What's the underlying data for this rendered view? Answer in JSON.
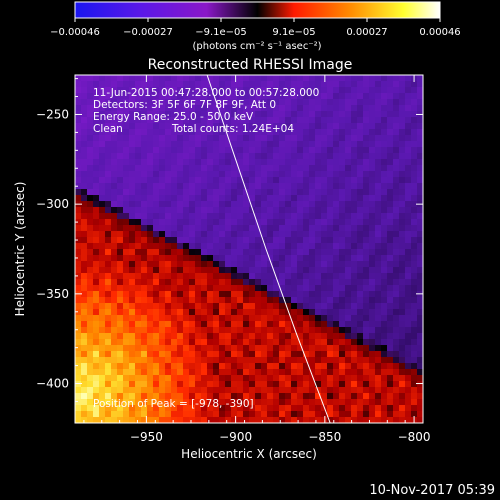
{
  "chart_data": {
    "type": "heatmap",
    "title": "Reconstructed RHESSI Image",
    "xlabel": "Heliocentric X (arcsec)",
    "ylabel": "Heliocentric Y (arcsec)",
    "xlim": [
      -990,
      -795
    ],
    "ylim": [
      -422,
      -228
    ],
    "x_ticks": [
      -950,
      -900,
      -850,
      -800
    ],
    "x_tick_labels": [
      "−950",
      "−900",
      "−850",
      "−800"
    ],
    "y_ticks": [
      -250,
      -300,
      -350,
      -400
    ],
    "y_tick_labels": [
      "−250",
      "−300",
      "−350",
      "−400"
    ],
    "colorbar": {
      "range": [
        -0.00046,
        0.00046
      ],
      "tick_labels": [
        "−0.00046",
        "−0.00027",
        "−9.1e−05",
        "9.1e−05",
        "0.00027",
        "0.00046"
      ],
      "unit_label": "(photons cm⁻² s⁻¹ asec⁻²)",
      "colormap": [
        "#1a16f0",
        "#5a18e8",
        "#8a18c8",
        "#000000",
        "#ff1a00",
        "#ff8800",
        "#ffff30",
        "#ffffff"
      ]
    },
    "annotations": {
      "time_range": "11-Jun-2015 00:47:28.000 to 00:57:28.000",
      "detectors": "Detectors: 3F 5F 6F 7F 8F 9F, Att 0",
      "energy_range": "Energy Range: 25.0 - 50.0 keV",
      "clean": "Clean",
      "total_counts": "Total counts: 1.24E+04",
      "peak": "Position of Peak = [-978, -390]"
    },
    "limb_line": [
      [
        -916,
        -228
      ],
      [
        -900,
        -275
      ],
      [
        -883,
        -325
      ],
      [
        -866,
        -372
      ],
      [
        -847,
        -422
      ]
    ],
    "grid": false
  },
  "footer": {
    "timestamp": "10-Nov-2017 05:39"
  }
}
